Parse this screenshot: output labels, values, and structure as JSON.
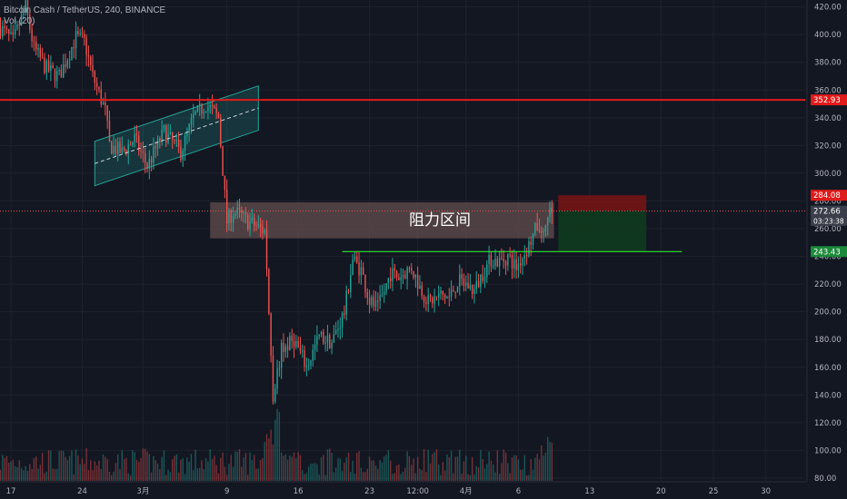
{
  "header": {
    "symbol": "Bitcoin Cash / TetherUS, 240, BINANCE",
    "volume": "Vol (20)"
  },
  "annotation": {
    "resistance_label": "阻力区间"
  },
  "colors": {
    "background": "#131722",
    "up": "#26a69a",
    "down": "#ef5350",
    "grid": "#1e222d",
    "axis_text": "#b2b5be",
    "resistance_line": "#e01b1b",
    "support_line": "#2ee62e",
    "channel": "#26a69a",
    "zone": "#6f5555",
    "stop": "#7a1414",
    "target": "#103a1e"
  },
  "chart_data": {
    "type": "candlestick",
    "y_axis": {
      "ticks": [
        80,
        100,
        120,
        140,
        160,
        180,
        200,
        220,
        240,
        260,
        280,
        300,
        320,
        340,
        360,
        380,
        400,
        420
      ],
      "tick_labels": [
        "80.00",
        "100.00",
        "120.00",
        "140.00",
        "160.00",
        "180.00",
        "200.00",
        "220.00",
        "240.00",
        "260.00",
        "280.00",
        "300.00",
        "320.00",
        "340.00",
        "360.00",
        "380.00",
        "400.00",
        "420.00"
      ],
      "range": [
        78,
        425
      ]
    },
    "x_axis": {
      "range_bars": [
        0,
        263
      ],
      "ticks": [
        {
          "label": "17",
          "bar": 5
        },
        {
          "label": "24",
          "bar": 39
        },
        {
          "label": "3月",
          "bar": 68
        },
        {
          "label": "9",
          "bar": 108
        },
        {
          "label": "16",
          "bar": 142
        },
        {
          "label": "23",
          "bar": 176
        },
        {
          "label": "12:00",
          "bar": 199
        },
        {
          "label": "4月",
          "bar": 222
        },
        {
          "label": "6",
          "bar": 247
        },
        {
          "label": "13",
          "bar": 281
        },
        {
          "label": "20",
          "bar": 315
        },
        {
          "label": "25",
          "bar": 340
        },
        {
          "label": "30",
          "bar": 365
        }
      ]
    },
    "price_labels": [
      {
        "value": 352.93,
        "text": "352.93",
        "color": "#e01b1b"
      },
      {
        "value": 284.08,
        "text": "284.08",
        "color": "#e01b1b"
      },
      {
        "value": 272.66,
        "text": "272.66",
        "color": "#3a3e4a"
      },
      {
        "value": 265.6,
        "text": "03:23:38",
        "color": "#3a3e4a",
        "small": true
      },
      {
        "value": 243.43,
        "text": "243.43",
        "color": "#1b8a3a"
      }
    ],
    "current_price": 272.66,
    "resistance_line": 352.93,
    "support_line": {
      "value": 243.43,
      "from_bar": 163,
      "to_bar": 325
    },
    "resistance_zone": {
      "from_bar": 100,
      "to_bar": 264,
      "top": 279,
      "bottom": 253
    },
    "channel": {
      "start_bar": 45,
      "end_bar": 123,
      "lower_start": 291,
      "lower_end": 331,
      "upper_start": 323,
      "upper_end": 363
    },
    "position": {
      "from_bar": 266,
      "to_bar": 308,
      "entry": 273,
      "stop": 284.08,
      "target": 243.43
    },
    "waypoints": [
      [
        0,
        405
      ],
      [
        6,
        395
      ],
      [
        12,
        420
      ],
      [
        16,
        390
      ],
      [
        22,
        375
      ],
      [
        28,
        370
      ],
      [
        36,
        398
      ],
      [
        40,
        395
      ],
      [
        44,
        370
      ],
      [
        50,
        345
      ],
      [
        52,
        320
      ],
      [
        58,
        315
      ],
      [
        64,
        325
      ],
      [
        70,
        305
      ],
      [
        78,
        330
      ],
      [
        86,
        315
      ],
      [
        92,
        340
      ],
      [
        98,
        350
      ],
      [
        104,
        340
      ],
      [
        108,
        265
      ],
      [
        111,
        272
      ],
      [
        114,
        270
      ],
      [
        118,
        265
      ],
      [
        122,
        262
      ],
      [
        126,
        258
      ],
      [
        128,
        200
      ],
      [
        130,
        140
      ],
      [
        134,
        172
      ],
      [
        140,
        180
      ],
      [
        146,
        160
      ],
      [
        152,
        182
      ],
      [
        158,
        178
      ],
      [
        164,
        200
      ],
      [
        168,
        238
      ],
      [
        172,
        230
      ],
      [
        176,
        208
      ],
      [
        180,
        202
      ],
      [
        186,
        228
      ],
      [
        190,
        225
      ],
      [
        196,
        232
      ],
      [
        200,
        218
      ],
      [
        204,
        207
      ],
      [
        210,
        212
      ],
      [
        214,
        210
      ],
      [
        218,
        222
      ],
      [
        222,
        220
      ],
      [
        226,
        215
      ],
      [
        230,
        228
      ],
      [
        234,
        238
      ],
      [
        238,
        236
      ],
      [
        242,
        240
      ],
      [
        246,
        232
      ],
      [
        252,
        248
      ],
      [
        256,
        262
      ],
      [
        259,
        256
      ],
      [
        262,
        275
      ],
      [
        263,
        273
      ]
    ],
    "volume_axis_max": 360
  }
}
